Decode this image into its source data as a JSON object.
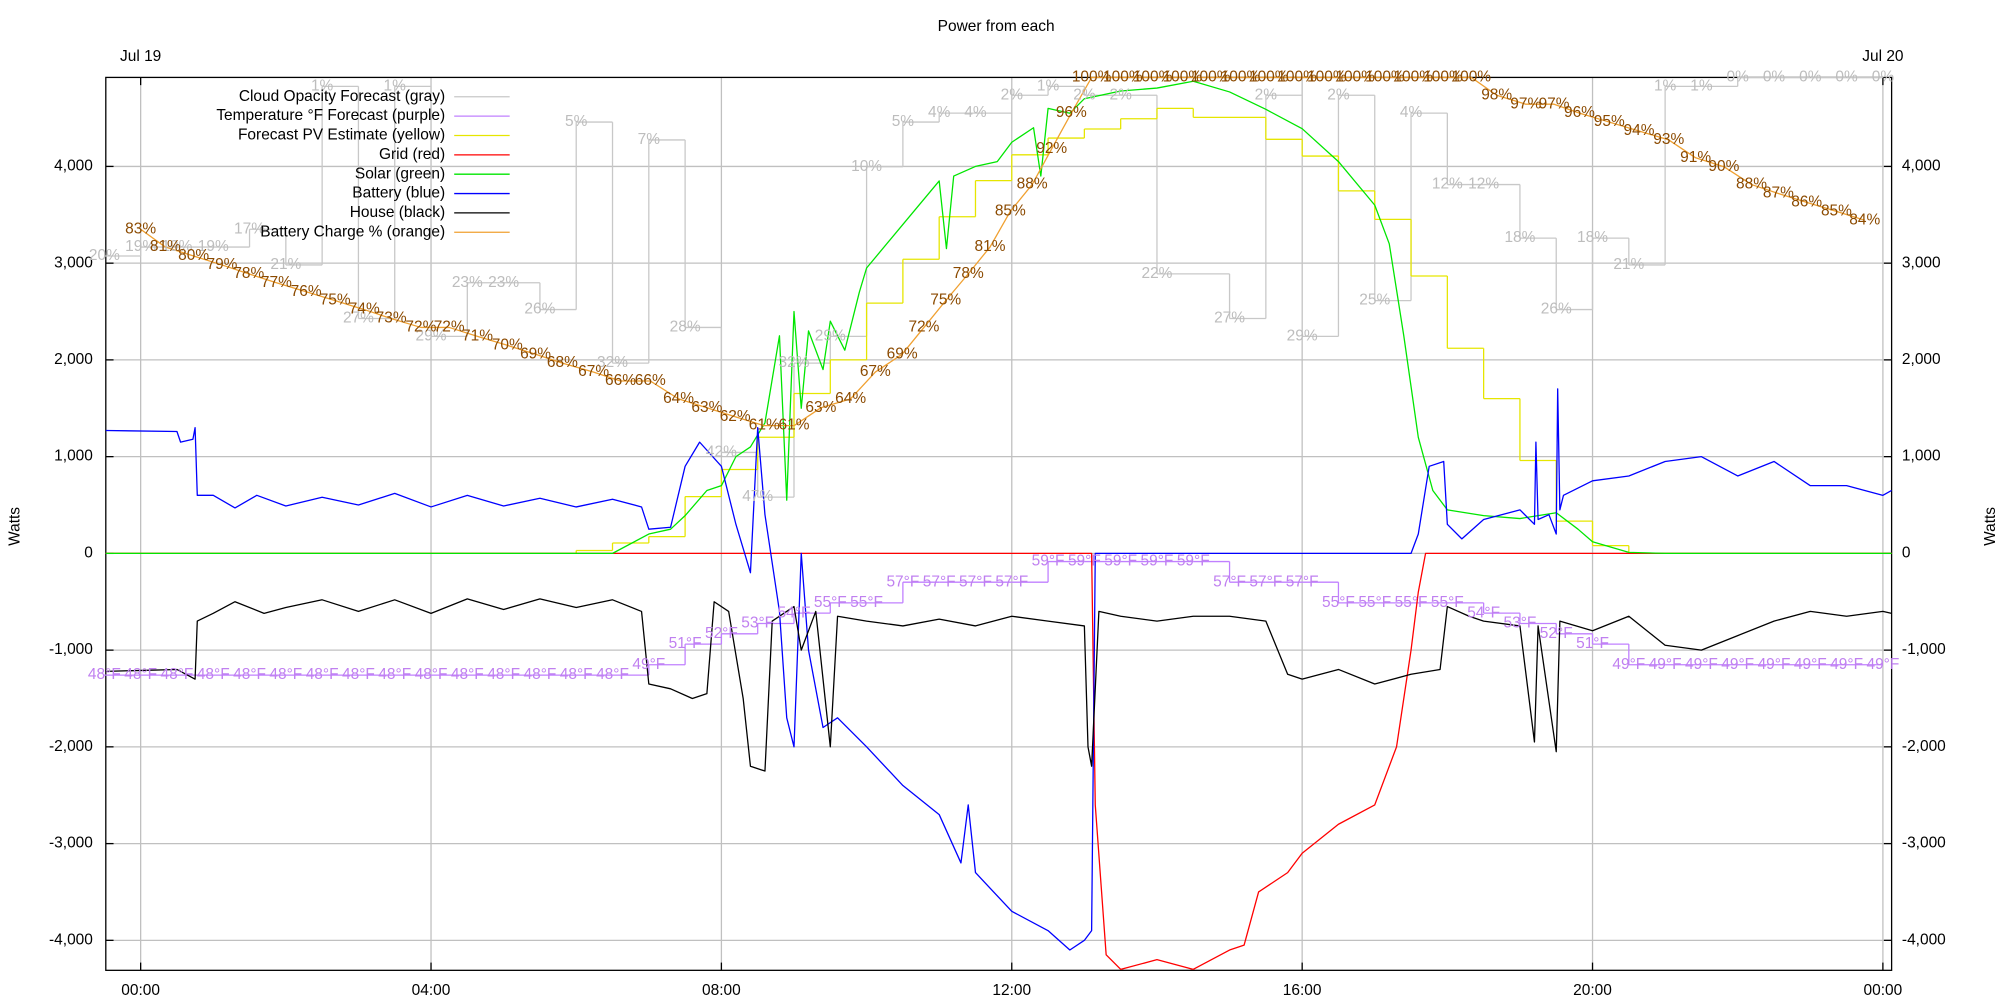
{
  "chart_data": {
    "type": "line",
    "title": "Power from each",
    "ylabel": "Watts",
    "y2label": "Watts",
    "xlim": [
      -0.48,
      24.12
    ],
    "ylim": [
      -4310,
      4920
    ],
    "y2lim": [
      -4310,
      4920
    ],
    "xticks": [
      {
        "value": 0,
        "label": "00:00"
      },
      {
        "value": 4,
        "label": "04:00"
      },
      {
        "value": 8,
        "label": "08:00"
      },
      {
        "value": 12,
        "label": "12:00"
      },
      {
        "value": 16,
        "label": "16:00"
      },
      {
        "value": 20,
        "label": "20:00"
      },
      {
        "value": 24,
        "label": "00:00"
      }
    ],
    "x2ticks": [
      {
        "value": 0,
        "label": "Jul 19"
      },
      {
        "value": 24,
        "label": "Jul 20"
      }
    ],
    "yticks": [
      {
        "value": -4000,
        "label": "-4,000"
      },
      {
        "value": -3000,
        "label": "-3,000"
      },
      {
        "value": -2000,
        "label": "-2,000"
      },
      {
        "value": -1000,
        "label": "-1,000"
      },
      0,
      {
        "value": 1000,
        "label": "1,000"
      },
      {
        "value": 2000,
        "label": "2,000"
      },
      {
        "value": 3000,
        "label": "3,000"
      },
      {
        "value": 4000,
        "label": "4,000"
      }
    ],
    "y2ticks": [
      {
        "value": -4000,
        "label": "-4,000"
      },
      {
        "value": -3000,
        "label": "-3,000"
      },
      {
        "value": -2000,
        "label": "-2,000"
      },
      {
        "value": -1000,
        "label": "-1,000"
      },
      0,
      {
        "value": 1000,
        "label": "1,000"
      },
      {
        "value": 2000,
        "label": "2,000"
      },
      {
        "value": 3000,
        "label": "3,000"
      },
      {
        "value": 4000,
        "label": "4,000"
      }
    ],
    "grid": true,
    "legend": "upper left",
    "series": [
      {
        "name": "Cloud Opacity Forecast (gray)",
        "color": "#c8c8c8",
        "label_color": "#bdbdbd",
        "drawstyle": "steps",
        "ylim": [
          100,
          0
        ],
        "x": [
          -0.5,
          0,
          0.5,
          1,
          1.5,
          2,
          2.5,
          3,
          3.5,
          4,
          4.5,
          5,
          5.5,
          6,
          6.5,
          7,
          7.5,
          8,
          8.5,
          9,
          9.5,
          10,
          10.5,
          11,
          11.5,
          12,
          12.5,
          13,
          13.5,
          14,
          15,
          15.5,
          16,
          16.5,
          17,
          17.5,
          18,
          18.5,
          19,
          19.5,
          20,
          20.5,
          21,
          21.5,
          22,
          22.5,
          23,
          23.5,
          24
        ],
        "values": [
          20,
          19,
          19,
          19,
          17,
          21,
          1,
          27,
          1,
          29,
          23,
          23,
          26,
          5,
          32,
          7,
          28,
          42,
          47,
          32,
          29,
          10,
          5,
          4,
          4,
          2,
          1,
          2,
          2,
          22,
          27,
          2,
          29,
          2,
          25,
          4,
          12,
          12,
          18,
          26,
          18,
          21,
          1,
          1,
          0,
          0,
          0,
          0,
          0
        ],
        "value_labels": [
          "20%",
          "19%",
          "19%",
          "19%",
          "17%",
          "21%",
          "1%",
          "27%",
          "1%",
          "29%",
          "23%",
          "23%",
          "26%",
          "5%",
          "32%",
          "7%",
          "28%",
          "42%",
          "47%",
          "32%",
          "29%",
          "10%",
          "5%",
          "4%",
          "4%",
          "2%",
          "1%",
          "2%",
          "2%",
          "22%",
          "27%",
          "2%",
          "29%",
          "2%",
          "25%",
          "4%",
          "12%",
          "12%",
          "18%",
          "26%",
          "18%",
          "21%",
          "1%",
          "1%",
          "0%",
          "0%",
          "0%",
          "0%",
          "0%"
        ]
      },
      {
        "name": "Temperature °F Forecast (purple)",
        "color": "#c080ff",
        "label_color": "#c080f0",
        "drawstyle": "steps",
        "ylim": [
          19.4,
          105.9
        ],
        "x": [
          -0.5,
          0,
          0.5,
          1,
          1.5,
          2,
          2.5,
          3,
          3.5,
          4,
          4.5,
          5,
          5.5,
          6,
          6.5,
          7,
          7.5,
          8,
          8.5,
          9,
          9.5,
          10,
          10.5,
          11,
          11.5,
          12,
          12.5,
          13,
          13.5,
          14,
          14.5,
          15,
          15.5,
          16,
          16.5,
          17,
          17.5,
          18,
          18.5,
          19,
          19.5,
          20,
          20.5,
          21,
          21.5,
          22,
          22.5,
          23,
          23.5,
          24
        ],
        "values": [
          48,
          48,
          48,
          48,
          48,
          48,
          48,
          48,
          48,
          48,
          48,
          48,
          48,
          48,
          48,
          49,
          51,
          52,
          53,
          54,
          55,
          55,
          57,
          57,
          57,
          57,
          59,
          59,
          59,
          59,
          59,
          57,
          57,
          57,
          55,
          55,
          55,
          55,
          54,
          53,
          52,
          51,
          49,
          49,
          49,
          49,
          49,
          49,
          49,
          49
        ],
        "value_labels": [
          "48°F",
          "48°F",
          "48°F",
          "48°F",
          "48°F",
          "48°F",
          "48°F",
          "48°F",
          "48°F",
          "48°F",
          "48°F",
          "48°F",
          "48°F",
          "48°F",
          "48°F",
          "49°F",
          "51°F",
          "52°F",
          "53°F",
          "54°F",
          "55°F",
          "55°F",
          "57°F",
          "57°F",
          "57°F",
          "57°F",
          "59°F",
          "59°F",
          "59°F",
          "59°F",
          "59°F",
          "57°F",
          "57°F",
          "57°F",
          "55°F",
          "55°F",
          "55°F",
          "55°F",
          "54°F",
          "53°F",
          "52°F",
          "51°F",
          "49°F",
          "49°F",
          "49°F",
          "49°F",
          "49°F",
          "49°F",
          "49°F",
          "49°F"
        ]
      },
      {
        "name": "Forecast PV Estimate (yellow)",
        "color": "#e6e600",
        "drawstyle": "steps",
        "x": [
          -0.48,
          6,
          6.5,
          7,
          7.5,
          8,
          8.5,
          9,
          9.5,
          10,
          10.5,
          11,
          11.5,
          12,
          12.5,
          13,
          13.5,
          14,
          14.5,
          15.5,
          16,
          16.5,
          17,
          17.5,
          18,
          18.5,
          19,
          19.5,
          20,
          20.5,
          24.12
        ],
        "values": [
          0,
          30,
          107,
          173,
          587,
          867,
          1200,
          1653,
          2000,
          2587,
          3040,
          3480,
          3853,
          4120,
          4293,
          4387,
          4493,
          4600,
          4507,
          4280,
          4107,
          3747,
          3453,
          2867,
          2120,
          1600,
          960,
          333,
          80,
          0,
          0
        ]
      },
      {
        "name": "Grid (red)",
        "color": "#ff0000",
        "x": [
          -0.48,
          13.1,
          13.15,
          13.3,
          13.5,
          14,
          14.5,
          15,
          15.2,
          15.4,
          15.8,
          16,
          16.5,
          17,
          17.3,
          17.5,
          17.6,
          17.7,
          24.12
        ],
        "values": [
          0,
          0,
          -2600,
          -4150,
          -4300,
          -4200,
          -4300,
          -4100,
          -4050,
          -3500,
          -3300,
          -3100,
          -2800,
          -2600,
          -2000,
          -1000,
          -400,
          0,
          0
        ]
      },
      {
        "name": "Solar (green)",
        "color": "#00e600",
        "x": [
          -0.48,
          6.5,
          7,
          7.3,
          7.5,
          7.8,
          8,
          8.2,
          8.4,
          8.6,
          8.8,
          8.9,
          9,
          9.1,
          9.2,
          9.4,
          9.5,
          9.7,
          9.9,
          10,
          10.5,
          11,
          11.1,
          11.2,
          11.5,
          11.8,
          12,
          12.3,
          12.4,
          12.5,
          12.8,
          13,
          13.5,
          14,
          14.5,
          15,
          15.5,
          16,
          16.5,
          17,
          17.2,
          17.4,
          17.6,
          17.8,
          18,
          18.5,
          19,
          19.5,
          19.8,
          20,
          20.5,
          21,
          24.12
        ],
        "values": [
          0,
          0,
          200,
          250,
          390,
          650,
          700,
          1000,
          1100,
          1350,
          2250,
          550,
          2500,
          1500,
          2300,
          1900,
          2400,
          2100,
          2700,
          2950,
          3400,
          3850,
          3150,
          3900,
          4000,
          4050,
          4250,
          4400,
          3900,
          4600,
          4550,
          4700,
          4780,
          4810,
          4880,
          4770,
          4590,
          4390,
          4050,
          3600,
          3200,
          2250,
          1200,
          650,
          450,
          390,
          360,
          420,
          250,
          120,
          10,
          0,
          0
        ]
      },
      {
        "name": "Battery (blue)",
        "color": "#0000ff",
        "x": [
          -0.48,
          0.5,
          0.55,
          0.72,
          0.75,
          0.78,
          1,
          1.3,
          1.6,
          2,
          2.5,
          3,
          3.5,
          4,
          4.5,
          5,
          5.5,
          6,
          6.5,
          6.9,
          7,
          7.3,
          7.5,
          7.7,
          8,
          8.2,
          8.4,
          8.5,
          8.6,
          8.8,
          8.9,
          9,
          9.1,
          9.2,
          9.4,
          9.6,
          10,
          10.5,
          11,
          11.3,
          11.4,
          11.5,
          12,
          12.5,
          12.8,
          13,
          13.1,
          13.15,
          17.5,
          17.6,
          17.75,
          17.95,
          18,
          18.2,
          18.5,
          19,
          19.2,
          19.22,
          19.25,
          19.4,
          19.5,
          19.52,
          19.55,
          19.6,
          20,
          20.5,
          21,
          21.5,
          22,
          22.5,
          23,
          23.5,
          24,
          24.12
        ],
        "values": [
          1270,
          1260,
          1150,
          1180,
          1300,
          600,
          600,
          470,
          600,
          490,
          580,
          500,
          620,
          480,
          600,
          490,
          570,
          480,
          560,
          480,
          250,
          270,
          900,
          1150,
          900,
          300,
          -200,
          1300,
          400,
          -600,
          -1700,
          -2000,
          0,
          -1000,
          -1800,
          -1700,
          -2000,
          -2400,
          -2700,
          -3200,
          -2600,
          -3300,
          -3700,
          -3900,
          -4100,
          -4000,
          -3900,
          0,
          0,
          200,
          900,
          950,
          300,
          150,
          350,
          450,
          300,
          1150,
          350,
          400,
          200,
          1700,
          450,
          600,
          750,
          800,
          950,
          1000,
          800,
          950,
          700,
          700,
          600,
          650
        ]
      },
      {
        "name": "House (black)",
        "color": "#000000",
        "x": [
          -0.48,
          0.5,
          0.75,
          0.78,
          1,
          1.3,
          1.7,
          2,
          2.5,
          3,
          3.5,
          4,
          4.5,
          5,
          5.5,
          6,
          6.5,
          6.9,
          7,
          7.3,
          7.6,
          7.8,
          7.9,
          8.1,
          8.3,
          8.4,
          8.6,
          8.7,
          9,
          9.1,
          9.3,
          9.5,
          9.6,
          10,
          10.5,
          11,
          11.5,
          12,
          12.5,
          13,
          13.05,
          13.1,
          13.2,
          13.5,
          14,
          14.5,
          15,
          15.5,
          15.8,
          16,
          16.5,
          17,
          17.5,
          17.9,
          18,
          18.3,
          18.5,
          19,
          19.2,
          19.25,
          19.5,
          19.55,
          20,
          20.5,
          21,
          21.5,
          22,
          22.5,
          23,
          23.5,
          24,
          24.12
        ],
        "values": [
          -1220,
          -1200,
          -1300,
          -700,
          -620,
          -500,
          -620,
          -560,
          -480,
          -600,
          -480,
          -620,
          -470,
          -580,
          -470,
          -560,
          -480,
          -600,
          -1350,
          -1400,
          -1500,
          -1450,
          -500,
          -600,
          -1500,
          -2200,
          -2250,
          -700,
          -550,
          -1000,
          -600,
          -2000,
          -650,
          -700,
          -750,
          -680,
          -750,
          -650,
          -700,
          -750,
          -2000,
          -2200,
          -600,
          -650,
          -700,
          -650,
          -650,
          -700,
          -1250,
          -1300,
          -1200,
          -1350,
          -1250,
          -1200,
          -550,
          -650,
          -700,
          -750,
          -1950,
          -750,
          -2050,
          -700,
          -800,
          -650,
          -950,
          -1000,
          -850,
          -700,
          -600,
          -650,
          -600,
          -620
        ]
      },
      {
        "name": "Battery Charge % (orange)",
        "color": "#f0a030",
        "label_color": "#8b4a00",
        "ylim": [
          0,
          100
        ],
        "x": [
          0,
          0.34,
          0.73,
          1.12,
          1.49,
          1.87,
          2.28,
          2.68,
          3.08,
          3.45,
          3.86,
          4.25,
          4.64,
          5.05,
          5.44,
          5.81,
          6.24,
          6.61,
          7.02,
          7.41,
          7.8,
          8.19,
          8.59,
          9.0,
          9.37,
          9.78,
          10.12,
          10.49,
          10.79,
          11.09,
          11.4,
          11.7,
          11.98,
          12.28,
          12.55,
          12.82,
          13.1,
          13.53,
          13.94,
          14.35,
          14.74,
          15.15,
          15.54,
          15.93,
          16.34,
          16.73,
          17.14,
          17.53,
          17.94,
          18.33,
          18.68,
          19.08,
          19.47,
          19.82,
          20.23,
          20.64,
          21.05,
          21.42,
          21.81,
          22.19,
          22.56,
          22.95,
          23.36,
          23.75
        ],
        "values": [
          83,
          81,
          80,
          79,
          78,
          77,
          76,
          75,
          74,
          73,
          72,
          72,
          71,
          70,
          69,
          68,
          67,
          66,
          66,
          64,
          63,
          62,
          61,
          61,
          63,
          64,
          67,
          69,
          72,
          75,
          78,
          81,
          85,
          88,
          92,
          96,
          100,
          100,
          100,
          100,
          100,
          100,
          100,
          100,
          100,
          100,
          100,
          100,
          100,
          100,
          98,
          97,
          97,
          96,
          95,
          94,
          93,
          91,
          90,
          88,
          87,
          86,
          85,
          84
        ],
        "value_labels": [
          "83%",
          "81%",
          "80%",
          "79%",
          "78%",
          "77%",
          "76%",
          "75%",
          "74%",
          "73%",
          "72%",
          "72%",
          "71%",
          "70%",
          "69%",
          "68%",
          "67%",
          "66%",
          "66%",
          "64%",
          "63%",
          "62%",
          "61%",
          "61%",
          "63%",
          "64%",
          "67%",
          "69%",
          "72%",
          "75%",
          "78%",
          "81%",
          "85%",
          "88%",
          "92%",
          "96%",
          "100%",
          "100%",
          "100%",
          "100%",
          "100%",
          "100%",
          "100%",
          "100%",
          "100%",
          "100%",
          "100%",
          "100%",
          "100%",
          "100%",
          "98%",
          "97%",
          "97%",
          "96%",
          "95%",
          "94%",
          "93%",
          "91%",
          "90%",
          "88%",
          "87%",
          "86%",
          "85%",
          "84%"
        ]
      }
    ]
  }
}
